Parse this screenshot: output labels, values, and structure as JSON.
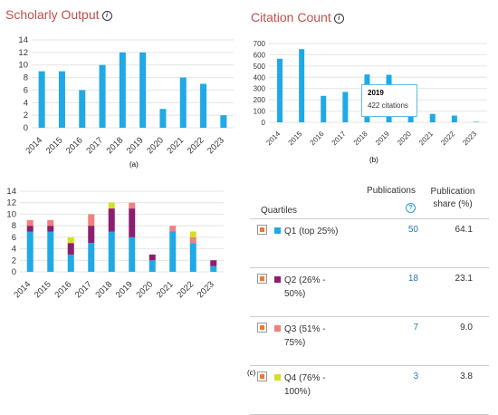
{
  "panel_a": {
    "title": "Scholarly Output",
    "info_icon": "info-icon",
    "label": "(a)"
  },
  "panel_b": {
    "title": "Citation Count",
    "info_icon": "info-icon",
    "label": "(b)",
    "tooltip": {
      "year": "2019",
      "value": "422 citations"
    }
  },
  "panel_c": {
    "label": "(c)",
    "table": {
      "headers": {
        "quartiles": "Quartiles",
        "publications": "Publications",
        "share_line1": "Publication",
        "share_line2": "share (%)"
      },
      "help_icon": "question-icon",
      "rows": [
        {
          "line1": "Q1 (top 25%)",
          "line2": "",
          "count": "50",
          "share": "64.1",
          "color": "#1fa9e6"
        },
        {
          "line1": "Q2 (26% -",
          "line2": "50%)",
          "count": "18",
          "share": "23.1",
          "color": "#8b1f6e"
        },
        {
          "line1": "Q3 (51% -",
          "line2": "75%)",
          "count": "7",
          "share": "9.0",
          "color": "#f08080"
        },
        {
          "line1": "Q4 (76% -",
          "line2": "100%)",
          "count": "3",
          "share": "3.8",
          "color": "#d4e021"
        }
      ]
    }
  },
  "chart_data": [
    {
      "type": "bar",
      "title": "Scholarly Output",
      "categories": [
        "2014",
        "2015",
        "2016",
        "2017",
        "2018",
        "2019",
        "2020",
        "2021",
        "2022",
        "2023"
      ],
      "values": [
        9,
        9,
        6,
        10,
        12,
        12,
        3,
        8,
        7,
        2
      ],
      "ylim": [
        0,
        14
      ],
      "yticks": [
        0,
        2,
        4,
        6,
        8,
        10,
        12,
        14
      ],
      "color": "#1fa9e6",
      "grid": true
    },
    {
      "type": "bar",
      "title": "Citation Count",
      "categories": [
        "2014",
        "2015",
        "2016",
        "2017",
        "2018",
        "2019",
        "2020",
        "2021",
        "2022",
        "2023"
      ],
      "values": [
        565,
        650,
        235,
        270,
        425,
        422,
        100,
        75,
        60,
        5
      ],
      "ylim": [
        0,
        700
      ],
      "yticks": [
        0,
        100,
        200,
        300,
        400,
        500,
        600,
        700
      ],
      "color": "#1fa9e6",
      "grid": true
    },
    {
      "type": "bar",
      "stacked": true,
      "categories": [
        "2014",
        "2015",
        "2016",
        "2017",
        "2018",
        "2019",
        "2020",
        "2021",
        "2022",
        "2023"
      ],
      "series": [
        {
          "name": "Q1 (top 25%)",
          "values": [
            7,
            7,
            3,
            5,
            7,
            6,
            2,
            7,
            5,
            1
          ],
          "color": "#1fa9e6"
        },
        {
          "name": "Q2 (26% - 50%)",
          "values": [
            1,
            1,
            2,
            3,
            4,
            5,
            1,
            0,
            0,
            1
          ],
          "color": "#8b1f6e"
        },
        {
          "name": "Q3 (51% - 75%)",
          "values": [
            1,
            1,
            0,
            2,
            0,
            1,
            0,
            1,
            1,
            0
          ],
          "color": "#f08080"
        },
        {
          "name": "Q4 (76% - 100%)",
          "values": [
            0,
            0,
            1,
            0,
            1,
            0,
            0,
            0,
            1,
            0
          ],
          "color": "#d4e021"
        }
      ],
      "ylim": [
        0,
        14
      ],
      "yticks": [
        0,
        2,
        4,
        6,
        8,
        10,
        12,
        14
      ],
      "grid": true
    }
  ]
}
